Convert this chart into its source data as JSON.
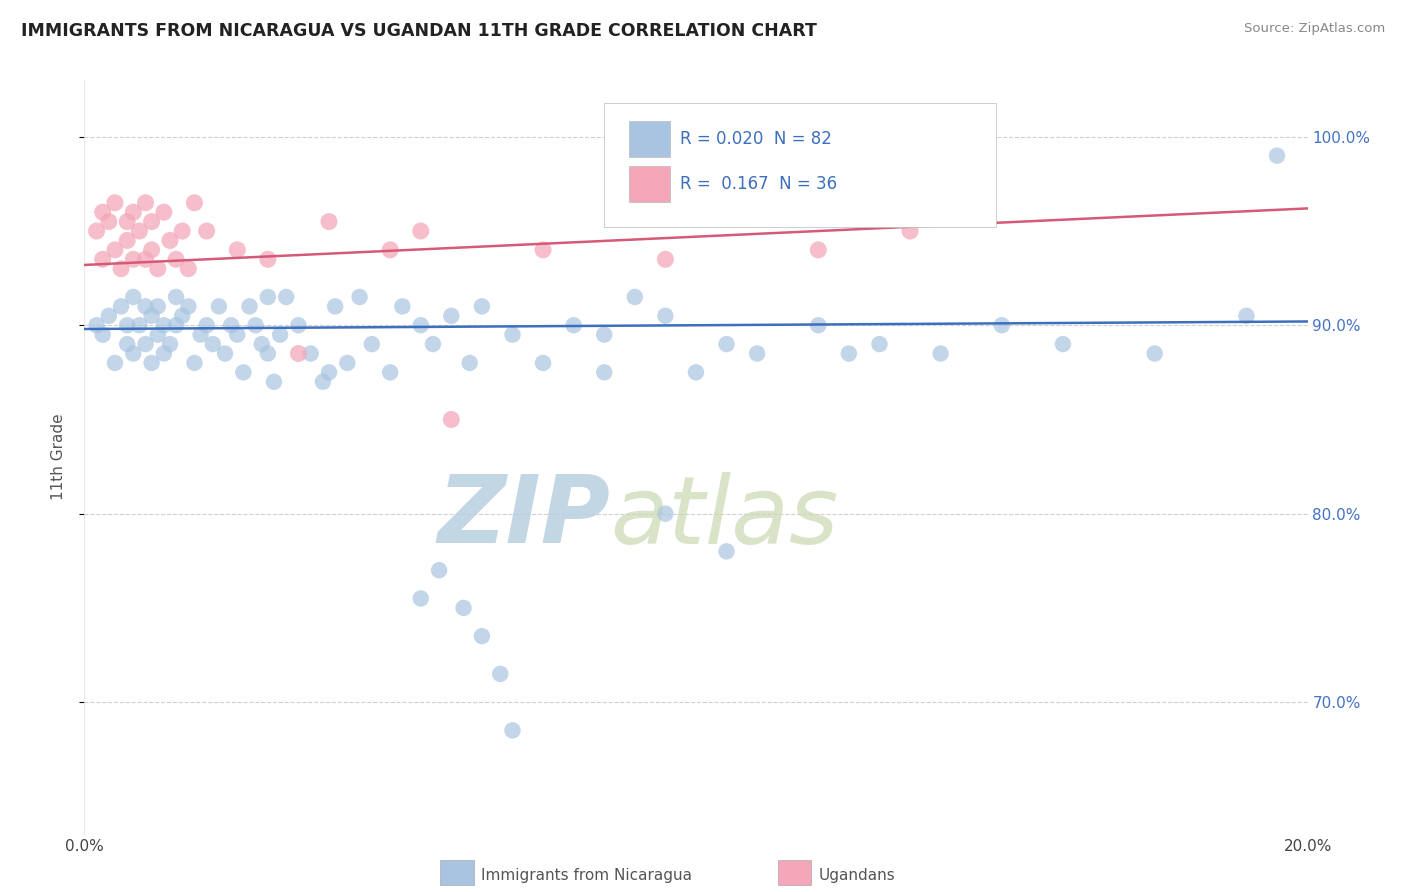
{
  "title": "IMMIGRANTS FROM NICARAGUA VS UGANDAN 11TH GRADE CORRELATION CHART",
  "source": "Source: ZipAtlas.com",
  "ylabel": "11th Grade",
  "xlim": [
    0.0,
    20.0
  ],
  "ylim": [
    63.0,
    103.0
  ],
  "blue_color": "#a8c4e0",
  "blue_line_color": "#3c6fbe",
  "pink_color": "#f4a7b9",
  "pink_line_color": "#d45a78",
  "legend_blue_R": "0.020",
  "legend_blue_N": "82",
  "legend_pink_R": "0.167",
  "legend_pink_N": "36",
  "legend_blue_box": "#a8c4e0",
  "legend_pink_box": "#f4a7b9",
  "watermark_zip": "ZIP",
  "watermark_atlas": "atlas",
  "watermark_color": "#c5d5e8",
  "blue_scatter_x": [
    0.2,
    0.3,
    0.4,
    0.5,
    0.6,
    0.7,
    0.7,
    0.8,
    0.8,
    0.9,
    1.0,
    1.0,
    1.1,
    1.1,
    1.2,
    1.2,
    1.3,
    1.3,
    1.4,
    1.5,
    1.5,
    1.6,
    1.7,
    1.8,
    1.9,
    2.0,
    2.1,
    2.2,
    2.3,
    2.4,
    2.5,
    2.6,
    2.7,
    2.8,
    2.9,
    3.0,
    3.0,
    3.1,
    3.2,
    3.3,
    3.5,
    3.7,
    3.9,
    4.1,
    4.3,
    4.5,
    4.7,
    5.0,
    5.2,
    5.5,
    5.7,
    6.0,
    6.3,
    6.5,
    7.0,
    7.5,
    8.0,
    8.5,
    9.0,
    9.5,
    10.0,
    10.5,
    8.5,
    11.0,
    12.0,
    12.5,
    13.0,
    14.0,
    15.0,
    16.0,
    17.5,
    19.0,
    19.5,
    9.5,
    10.5,
    5.5,
    6.5,
    7.0,
    4.0,
    5.8,
    6.2,
    6.8
  ],
  "blue_scatter_y": [
    90.0,
    89.5,
    90.5,
    88.0,
    91.0,
    90.0,
    89.0,
    88.5,
    91.5,
    90.0,
    91.0,
    89.0,
    90.5,
    88.0,
    91.0,
    89.5,
    90.0,
    88.5,
    89.0,
    91.5,
    90.0,
    90.5,
    91.0,
    88.0,
    89.5,
    90.0,
    89.0,
    91.0,
    88.5,
    90.0,
    89.5,
    87.5,
    91.0,
    90.0,
    89.0,
    88.5,
    91.5,
    87.0,
    89.5,
    91.5,
    90.0,
    88.5,
    87.0,
    91.0,
    88.0,
    91.5,
    89.0,
    87.5,
    91.0,
    90.0,
    89.0,
    90.5,
    88.0,
    91.0,
    89.5,
    88.0,
    90.0,
    89.5,
    91.5,
    90.5,
    87.5,
    89.0,
    87.5,
    88.5,
    90.0,
    88.5,
    89.0,
    88.5,
    90.0,
    89.0,
    88.5,
    90.5,
    99.0,
    80.0,
    78.0,
    75.5,
    73.5,
    68.5,
    87.5,
    77.0,
    75.0,
    71.5
  ],
  "pink_scatter_x": [
    0.2,
    0.3,
    0.3,
    0.4,
    0.5,
    0.5,
    0.6,
    0.7,
    0.7,
    0.8,
    0.8,
    0.9,
    1.0,
    1.0,
    1.1,
    1.1,
    1.2,
    1.3,
    1.4,
    1.5,
    1.6,
    1.7,
    1.8,
    2.0,
    2.5,
    3.0,
    4.0,
    5.0,
    5.5,
    6.0,
    7.5,
    9.5,
    10.5,
    12.0,
    13.5,
    3.5
  ],
  "pink_scatter_y": [
    95.0,
    96.0,
    93.5,
    95.5,
    94.0,
    96.5,
    93.0,
    95.5,
    94.5,
    93.5,
    96.0,
    95.0,
    93.5,
    96.5,
    94.0,
    95.5,
    93.0,
    96.0,
    94.5,
    93.5,
    95.0,
    93.0,
    96.5,
    95.0,
    94.0,
    93.5,
    95.5,
    94.0,
    95.0,
    85.0,
    94.0,
    93.5,
    96.5,
    94.0,
    95.0,
    88.5
  ],
  "blue_trend_x": [
    0.0,
    20.0
  ],
  "blue_trend_y": [
    89.8,
    90.2
  ],
  "pink_trend_x": [
    0.0,
    20.0
  ],
  "pink_trend_y": [
    93.2,
    96.2
  ],
  "bg_color": "#ffffff",
  "grid_color": "#cccccc",
  "title_color": "#222222",
  "source_color": "#888888",
  "right_axis_color": "#4472c4",
  "yticks_right": [
    70.0,
    80.0,
    90.0,
    100.0
  ],
  "bottom_legend_blue": "Immigrants from Nicaragua",
  "bottom_legend_pink": "Ugandans"
}
